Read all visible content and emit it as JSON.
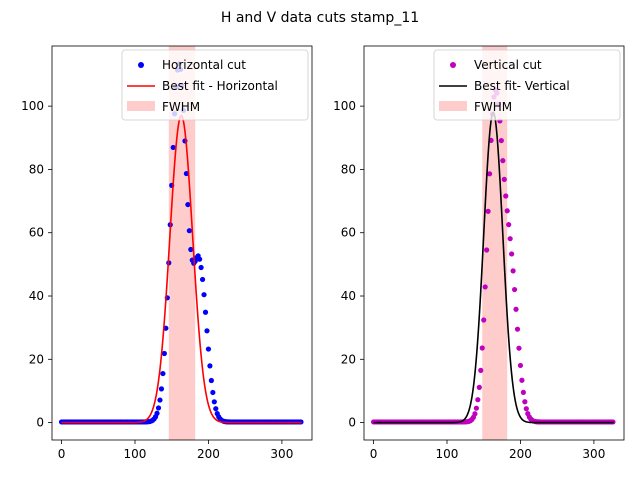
{
  "figure": {
    "title": "H and V data cuts stamp_11"
  },
  "chart_data": [
    {
      "type": "scatter",
      "panel": "left",
      "xlim": [
        -13,
        341
      ],
      "ylim": [
        -5.5,
        119
      ],
      "xticks": [
        0,
        100,
        200,
        300
      ],
      "yticks": [
        0,
        20,
        40,
        60,
        80,
        100
      ],
      "legend_position": "upper-right",
      "fwhm_band": {
        "name": "FWHM",
        "x_range": [
          146,
          182
        ],
        "color": "#ffcccc"
      },
      "scatter_series": {
        "name": "Horizontal cut",
        "color": "#0000ff",
        "x_range": [
          0,
          327
        ],
        "peak_x": 160,
        "peak_y": 113,
        "sigma_left": 11,
        "sigma_right": 11,
        "shoulder_x": 188,
        "shoulder_y": 47,
        "shoulder_sigma_left": 8,
        "shoulder_sigma_right": 10
      },
      "fit_series": {
        "name": "Best fit - Horizontal",
        "color": "#ff0000",
        "center": 163,
        "amplitude": 97,
        "sigma": 15.5
      }
    },
    {
      "type": "scatter",
      "panel": "right",
      "xlim": [
        -13,
        341
      ],
      "ylim": [
        -5.5,
        119
      ],
      "xticks": [
        0,
        100,
        200,
        300
      ],
      "yticks": [
        0,
        20,
        40,
        60,
        80,
        100
      ],
      "legend_position": "upper-right",
      "fwhm_band": {
        "name": "FWHM",
        "x_range": [
          148,
          182
        ],
        "color": "#ffcccc"
      },
      "scatter_series": {
        "name": "Vertical cut",
        "color": "#bf00bf",
        "x_range": [
          0,
          327
        ],
        "peak_x": 165,
        "peak_y": 99,
        "sigma_left": 10,
        "sigma_right": 10,
        "shoulder_x": 186,
        "shoulder_y": 47,
        "shoulder_sigma_left": 10,
        "shoulder_sigma_right": 10
      },
      "fit_series": {
        "name": "Best fit- Vertical",
        "color": "#000000",
        "center": 163,
        "amplitude": 98,
        "sigma": 13
      }
    }
  ]
}
